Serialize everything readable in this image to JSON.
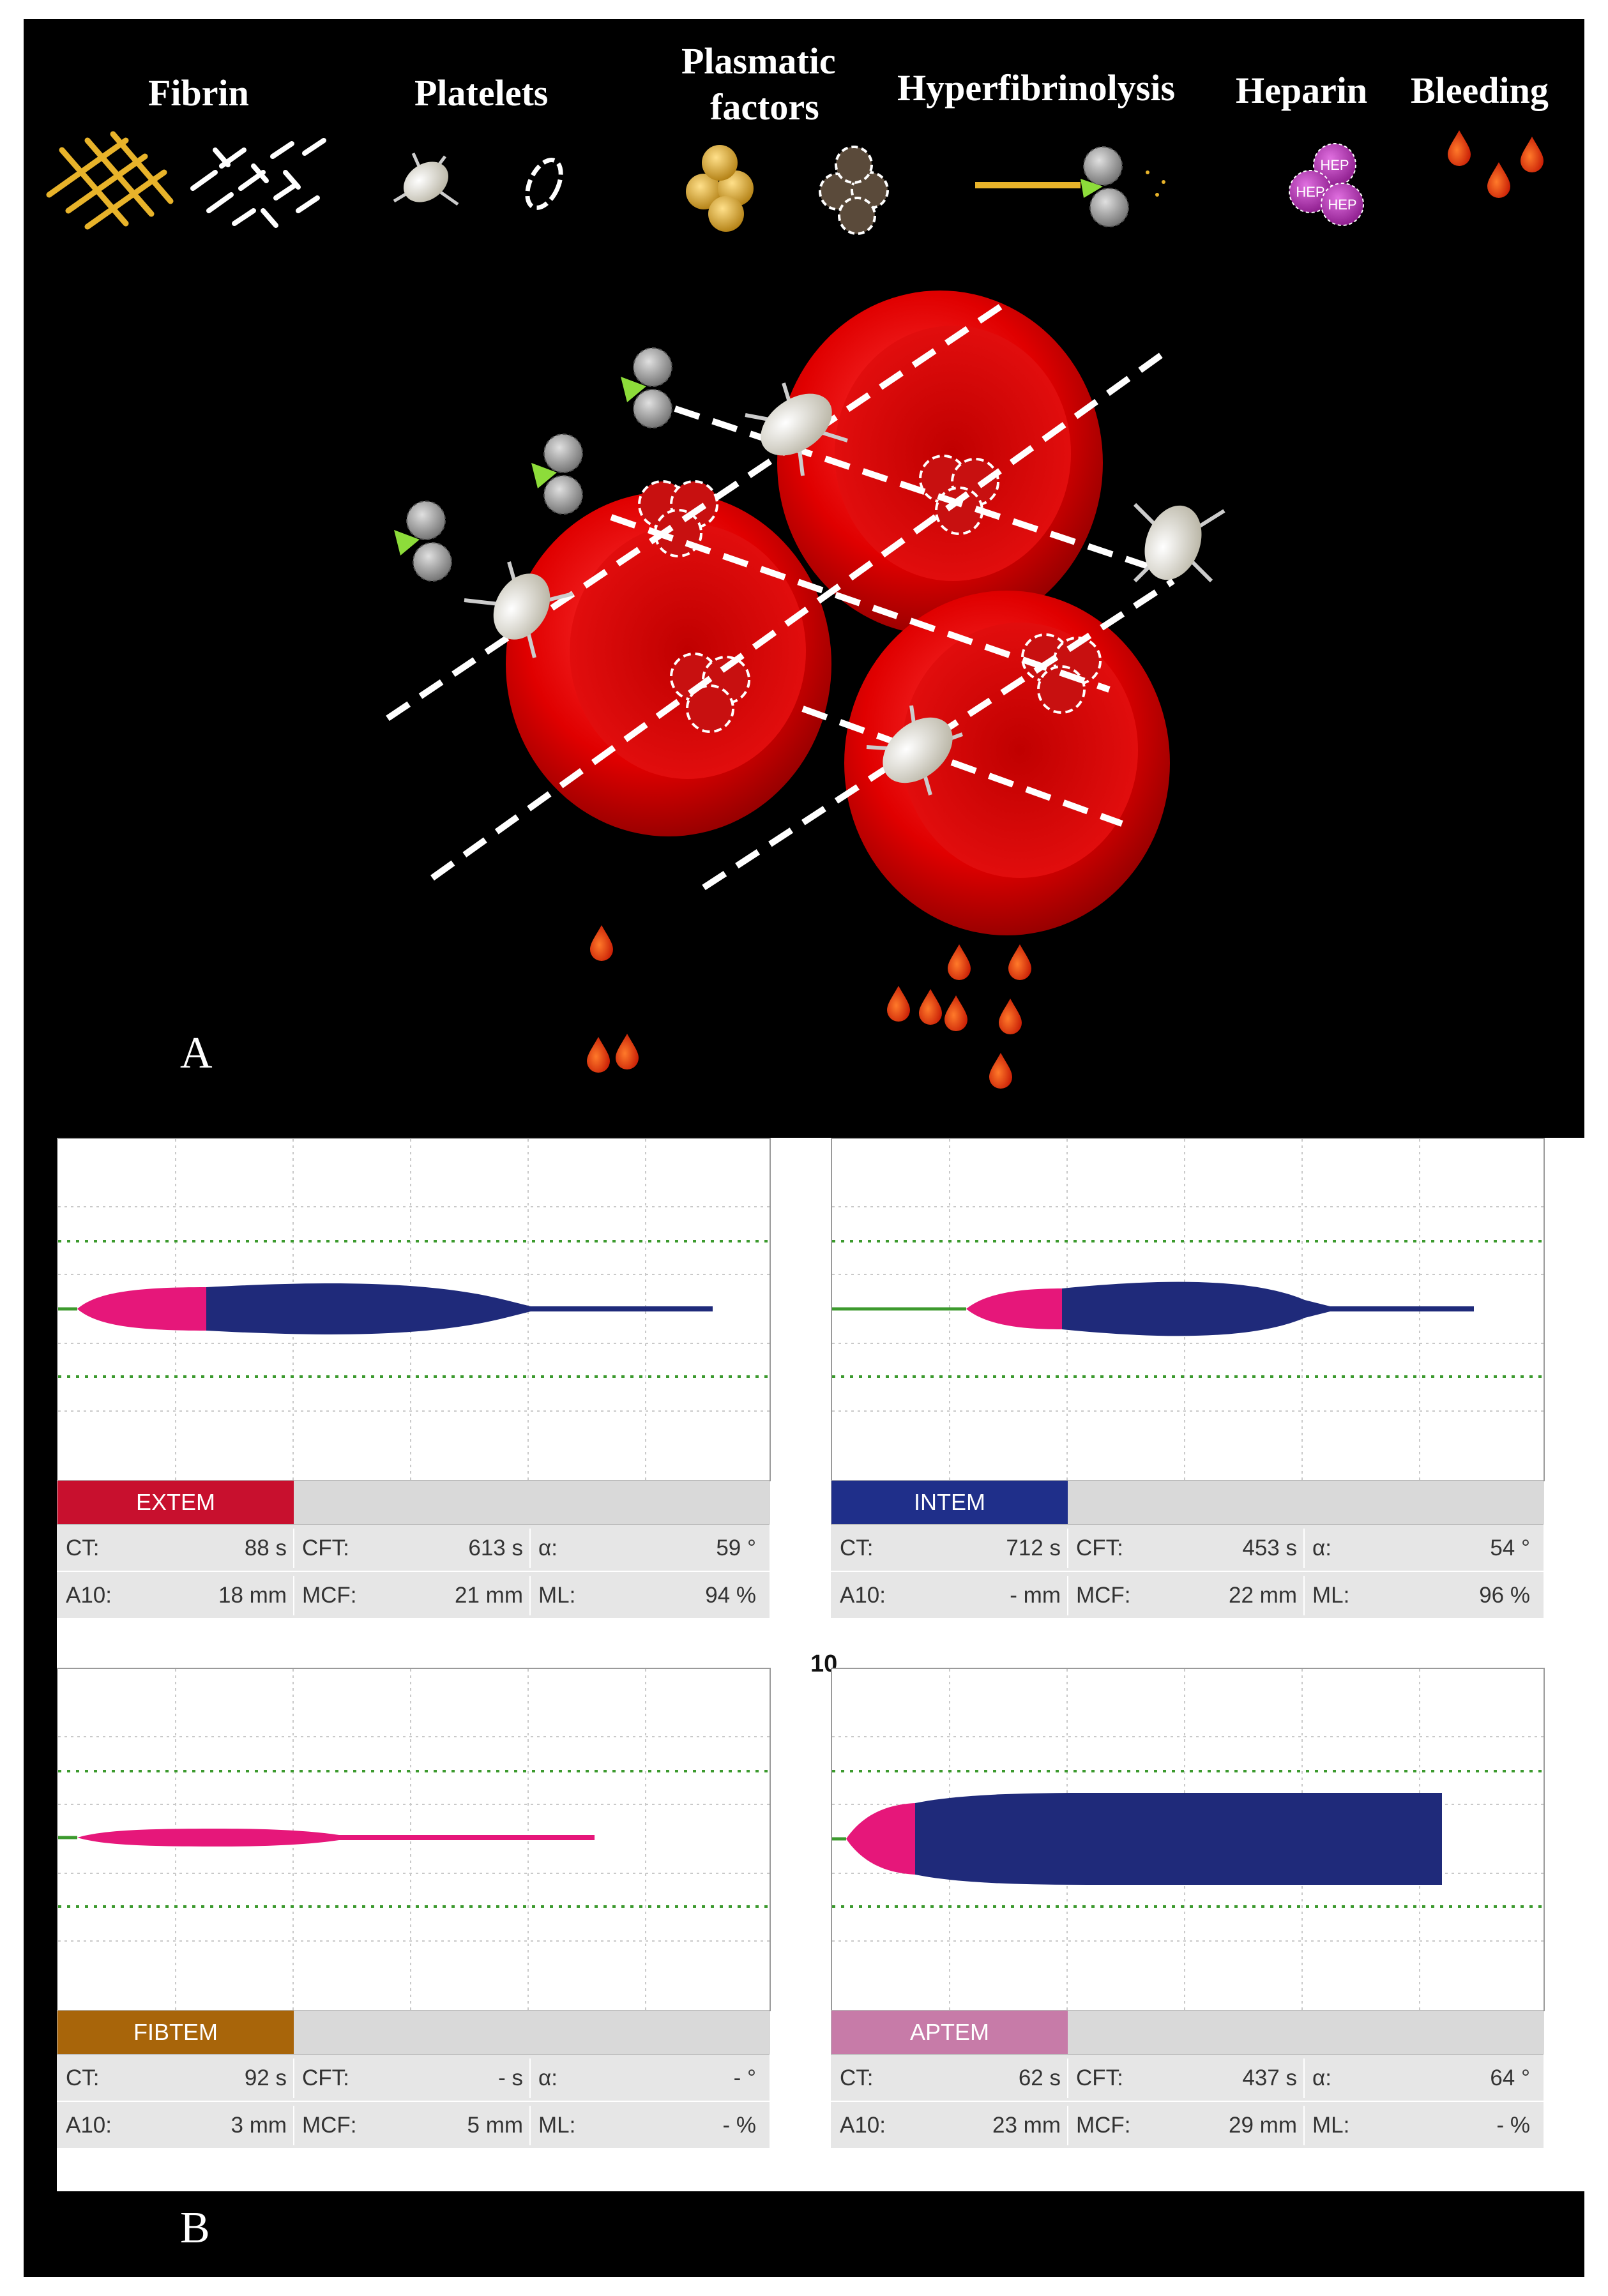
{
  "legend": {
    "fibrin": "Fibrin",
    "platelets": "Platelets",
    "plasmatic_line1": "Plasmatic",
    "plasmatic_line2": "factors",
    "hyperfibrinolysis": "Hyperfibrinolysis",
    "heparin": "Heparin",
    "bleeding": "Bleeding",
    "heparin_label": "HEP"
  },
  "panel_a_label": "A",
  "panel_b_label": "B",
  "center_label": "10",
  "colors": {
    "extem": "#c8102e",
    "intem": "#1f2f8a",
    "fibtem": "#a8650a",
    "aptem": "#c77ba8",
    "clot_blue": "#1f2a7a",
    "clot_pink": "#e6177a",
    "baseline_green": "#3c9a2e"
  },
  "tests": [
    {
      "name": "EXTEM",
      "ct_label": "CT:",
      "ct_value": "88 s",
      "cft_label": "CFT:",
      "cft_value": "613 s",
      "alpha_label": "α:",
      "alpha_value": "59 °",
      "a10_label": "A10:",
      "a10_value": "18 mm",
      "mcf_label": "MCF:",
      "mcf_value": "21 mm",
      "ml_label": "ML:",
      "ml_value": "94 %"
    },
    {
      "name": "INTEM",
      "ct_label": "CT:",
      "ct_value": "712 s",
      "cft_label": "CFT:",
      "cft_value": "453 s",
      "alpha_label": "α:",
      "alpha_value": "54 °",
      "a10_label": "A10:",
      "a10_value": "- mm",
      "mcf_label": "MCF:",
      "mcf_value": "22 mm",
      "ml_label": "ML:",
      "ml_value": "96 %"
    },
    {
      "name": "FIBTEM",
      "ct_label": "CT:",
      "ct_value": "92 s",
      "cft_label": "CFT:",
      "cft_value": "- s",
      "alpha_label": "α:",
      "alpha_value": "- °",
      "a10_label": "A10:",
      "a10_value": "3 mm",
      "mcf_label": "MCF:",
      "mcf_value": "5 mm",
      "ml_label": "ML:",
      "ml_value": "- %"
    },
    {
      "name": "APTEM",
      "ct_label": "CT:",
      "ct_value": "62 s",
      "cft_label": "CFT:",
      "cft_value": "437 s",
      "alpha_label": "α:",
      "alpha_value": "64 °",
      "a10_label": "A10:",
      "a10_value": "23 mm",
      "mcf_label": "MCF:",
      "mcf_value": "29 mm",
      "ml_label": "ML:",
      "ml_value": "- %"
    }
  ]
}
